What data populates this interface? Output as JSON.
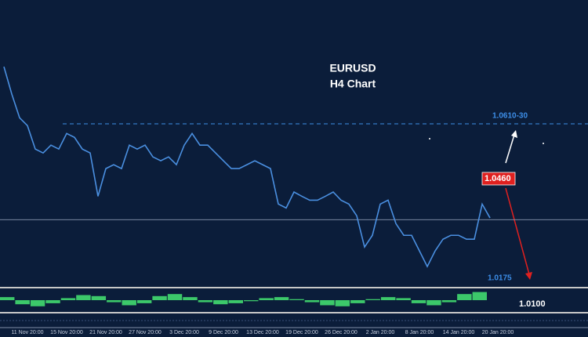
{
  "chart_data": {
    "type": "line",
    "title": "EURUSD",
    "subtitle": "H4 Chart",
    "categories": [
      null,
      null,
      null,
      "11 Nov 20:00",
      null,
      null,
      null,
      null,
      "15 Nov 20:00",
      null,
      null,
      null,
      null,
      "21 Nov 20:00",
      null,
      null,
      null,
      null,
      "27 Nov 20:00",
      null,
      null,
      null,
      null,
      "3 Dec 20:00",
      null,
      null,
      null,
      null,
      "9 Dec 20:00",
      null,
      null,
      null,
      null,
      "13 Dec 20:00",
      null,
      null,
      null,
      null,
      "19 Dec 20:00",
      null,
      null,
      null,
      null,
      "26 Dec 20:00",
      null,
      null,
      null,
      null,
      "2 Jan 20:00",
      null,
      null,
      null,
      null,
      "8 Jan 20:00",
      null,
      null,
      null,
      null,
      "14 Jan 20:00",
      null,
      null,
      null,
      null,
      "20 Jan 20:00"
    ],
    "values": [
      1.0771,
      1.0694,
      1.0627,
      1.0605,
      1.0539,
      1.0528,
      1.055,
      1.0539,
      1.0583,
      1.0572,
      1.0539,
      1.0528,
      1.0406,
      1.0484,
      1.0495,
      1.0484,
      1.055,
      1.0539,
      1.055,
      1.0517,
      1.0506,
      1.0517,
      1.0495,
      1.055,
      1.0583,
      1.055,
      1.055,
      1.0528,
      1.0506,
      1.0484,
      1.0484,
      1.0495,
      1.0506,
      1.0495,
      1.0484,
      1.0384,
      1.0373,
      1.0418,
      1.0406,
      1.0395,
      1.0395,
      1.0406,
      1.0418,
      1.0395,
      1.0384,
      1.0351,
      1.0263,
      1.0296,
      1.0384,
      1.0395,
      1.0329,
      1.0296,
      1.0296,
      1.0252,
      1.0208,
      1.0252,
      1.0285,
      1.0296,
      1.0296,
      1.0285,
      1.0285,
      1.0384,
      1.0345,
      null
    ],
    "color": "#4a8fe0",
    "ylim": [
      1.0153,
      1.0959
    ],
    "levels": [
      {
        "value": 1.061,
        "label": "1.0610-30",
        "color": "#3d8ee8"
      },
      {
        "value": 1.046,
        "label": "1.0460",
        "color": "#e0201f"
      },
      {
        "value": 1.0175,
        "label": "1.0175",
        "color": "#3d8ee8"
      },
      {
        "value": 1.01,
        "label": "1.0100",
        "color": "#ffffff"
      }
    ],
    "price_line": 1.034,
    "oscillator": {
      "color": "#3cc86a",
      "ylim": [
        -1,
        1
      ],
      "values": [
        0.3,
        -0.4,
        -0.6,
        -0.3,
        0.2,
        0.5,
        0.4,
        -0.2,
        -0.5,
        -0.3,
        0.4,
        0.6,
        0.3,
        -0.2,
        -0.4,
        -0.3,
        -0.1,
        0.2,
        0.3,
        0.1,
        -0.2,
        -0.5,
        -0.6,
        -0.3,
        0.1,
        0.3,
        0.2,
        -0.3,
        -0.5,
        -0.2,
        0.6,
        0.8
      ]
    }
  }
}
